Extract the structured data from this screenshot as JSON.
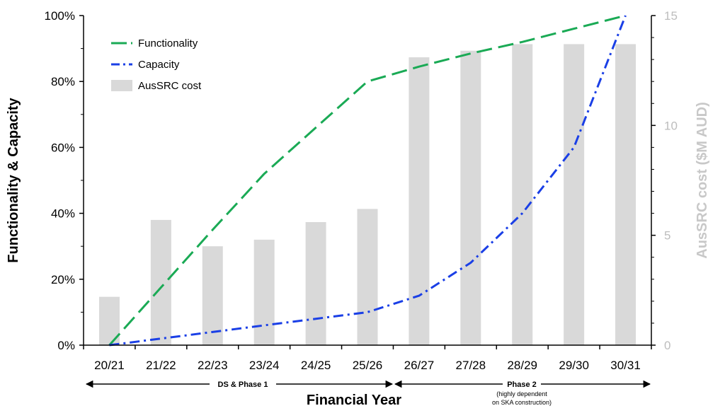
{
  "chart_data": {
    "type": "bar+line",
    "categories": [
      "20/21",
      "21/22",
      "22/23",
      "23/24",
      "24/25",
      "25/26",
      "26/27",
      "27/28",
      "28/29",
      "29/30",
      "30/31"
    ],
    "series": [
      {
        "name": "Functionality",
        "kind": "line",
        "axis": "left",
        "style": "dashed",
        "color": "#1aaa55",
        "values": [
          0,
          17.5,
          35,
          52,
          66,
          80,
          84.5,
          88.5,
          92,
          96,
          100
        ]
      },
      {
        "name": "Capacity",
        "kind": "line",
        "axis": "left",
        "style": "dash-dot",
        "color": "#1a3fe6",
        "values": [
          0,
          2,
          4,
          6,
          8,
          10,
          15,
          25,
          40,
          60,
          100
        ]
      },
      {
        "name": "AusSRC cost",
        "kind": "bar",
        "axis": "right",
        "color": "#d9d9d9",
        "values": [
          2.2,
          5.7,
          4.5,
          4.8,
          5.6,
          6.2,
          13.1,
          13.4,
          13.7,
          13.7,
          13.7
        ]
      }
    ],
    "left_axis": {
      "label": "Functionality & Capacity",
      "ylim": [
        0,
        100
      ],
      "ticks": [
        "0%",
        "20%",
        "40%",
        "60%",
        "80%",
        "100%"
      ],
      "tick_values": [
        0,
        20,
        40,
        60,
        80,
        100
      ]
    },
    "right_axis": {
      "label": "AusSRC cost ($M AUD)",
      "ylim": [
        0,
        15
      ],
      "ticks": [
        "0",
        "5",
        "10",
        "15"
      ],
      "tick_values": [
        0,
        5,
        10,
        15
      ]
    },
    "xlabel": "Financial Year",
    "phases": [
      {
        "label": "DS & Phase 1",
        "note": []
      },
      {
        "label": "Phase 2",
        "note": [
          "(highly dependent",
          "on SKA construction)"
        ]
      }
    ],
    "legend": {
      "placement": "top-left"
    },
    "grid": false
  }
}
